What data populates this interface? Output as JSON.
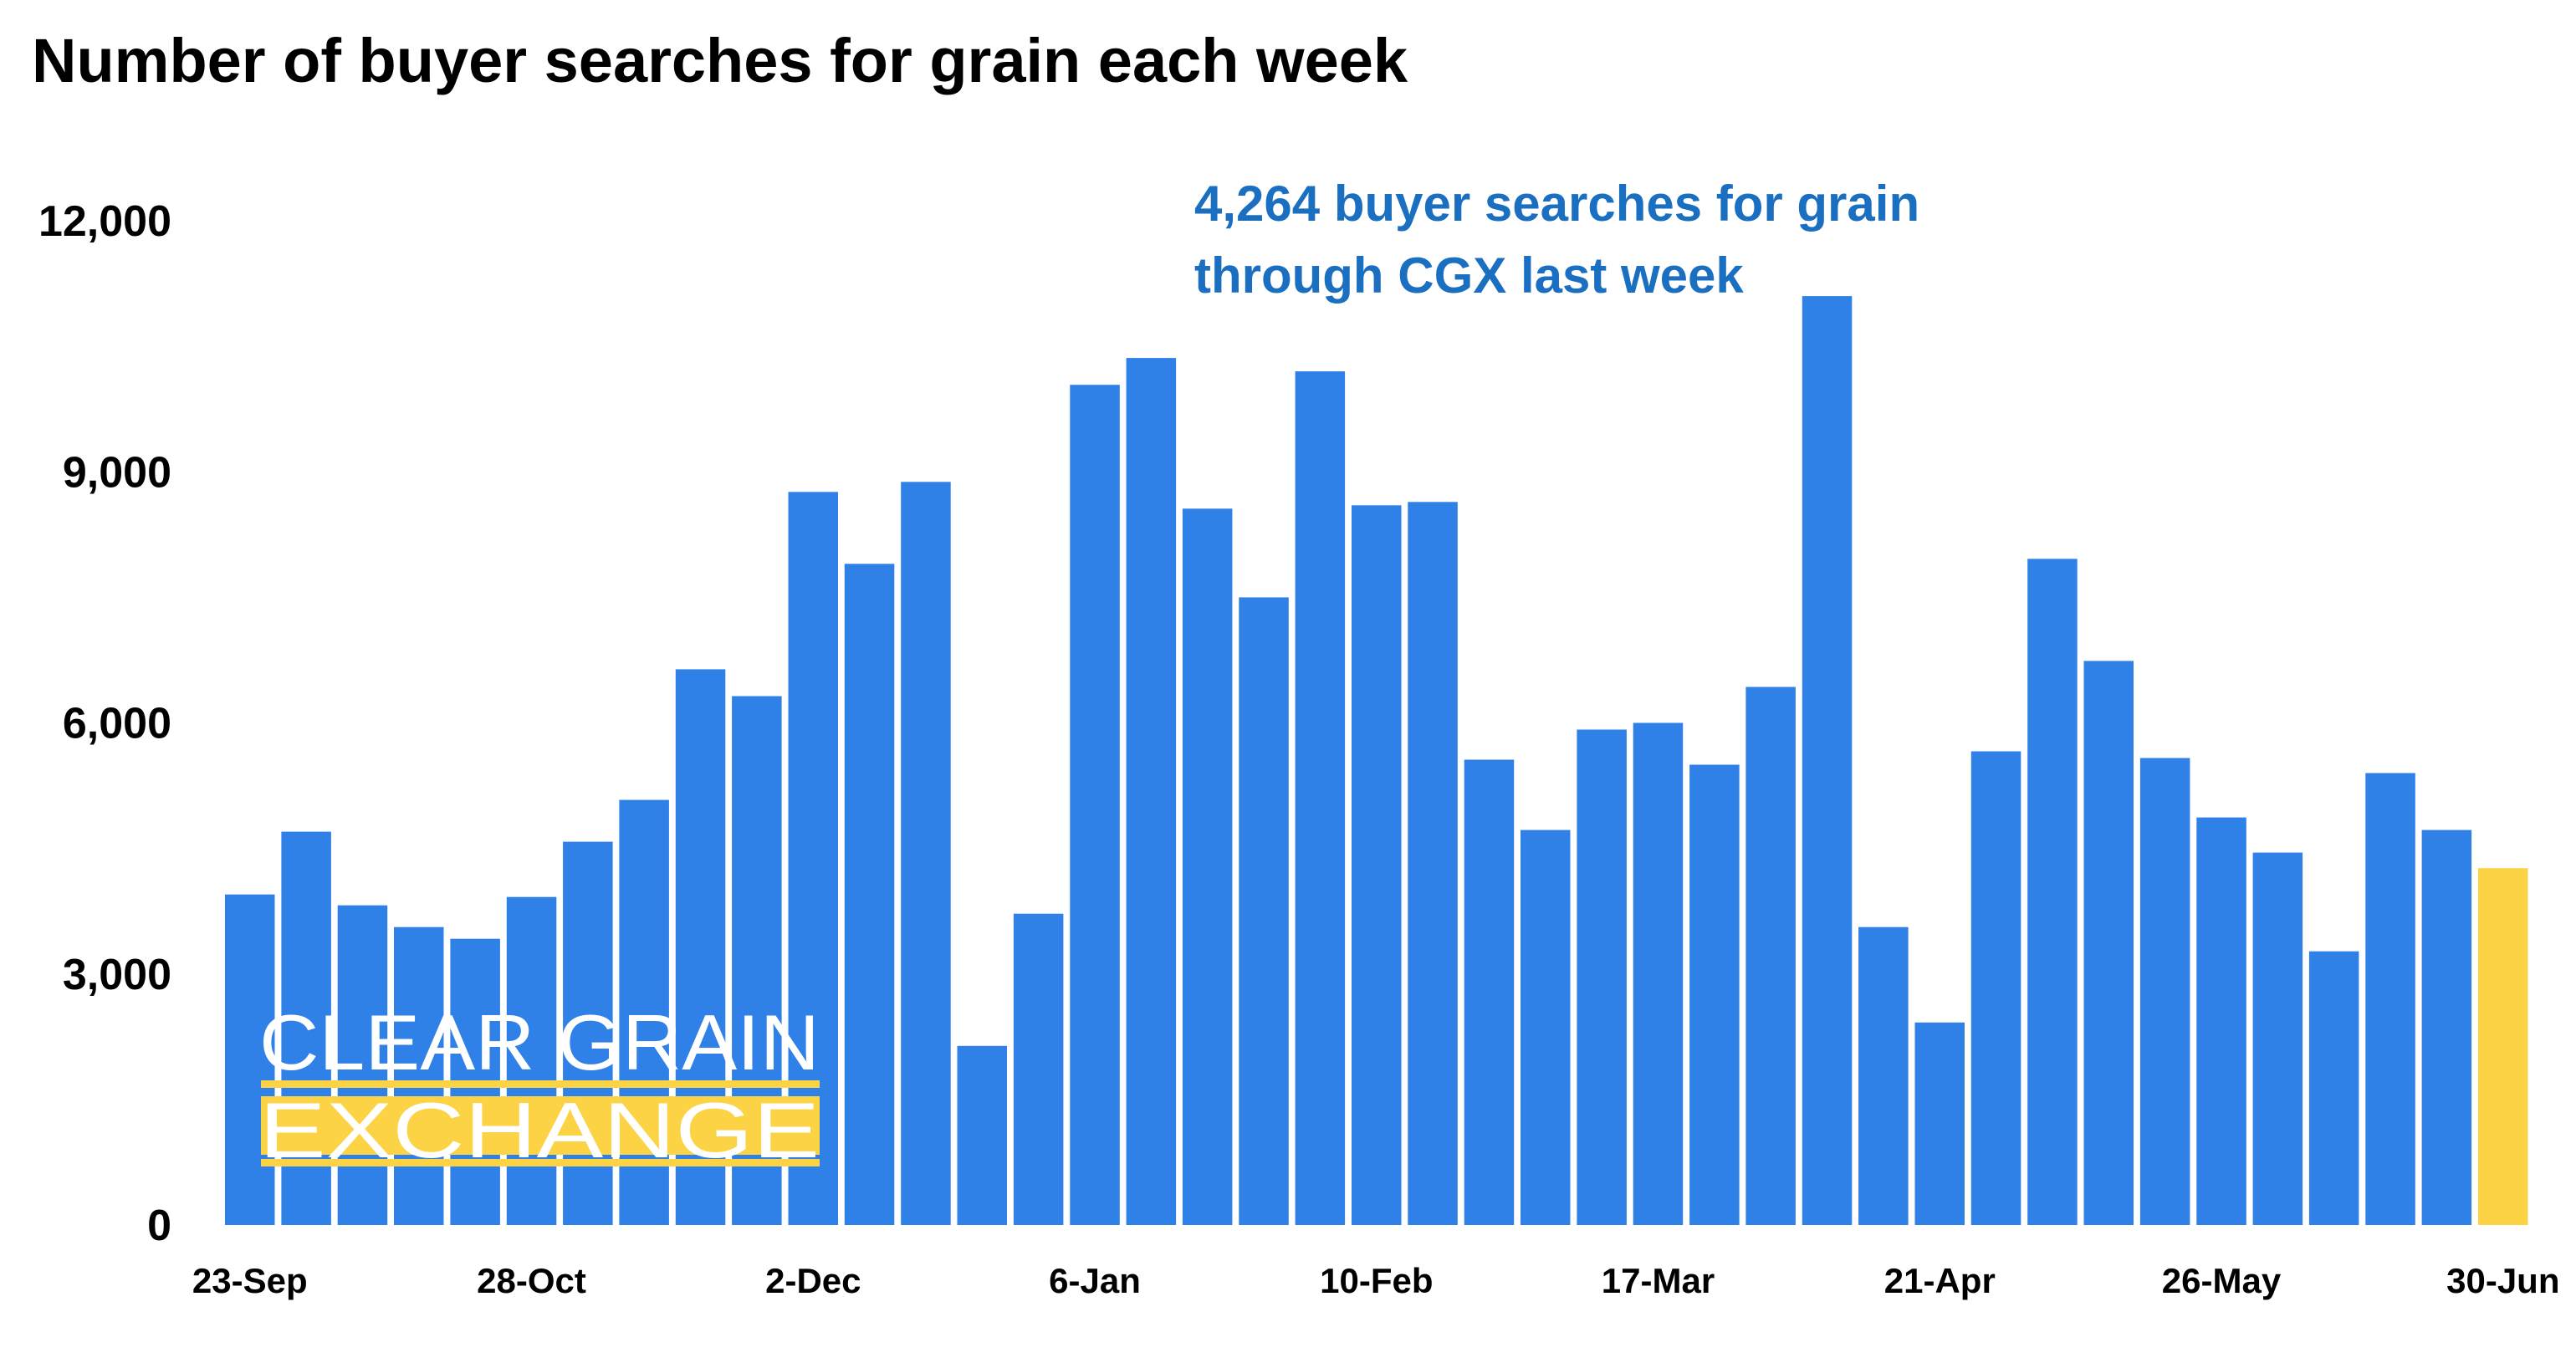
{
  "chart_data": {
    "type": "bar",
    "title": "Number of buyer searches for grain each week",
    "xlabel": "",
    "ylabel": "",
    "ylim": [
      0,
      12000
    ],
    "yticks": [
      0,
      3000,
      6000,
      9000,
      12000
    ],
    "ytick_labels": [
      "0",
      "3,000",
      "6,000",
      "9,000",
      "12,000"
    ],
    "grid": false,
    "legend": "none",
    "xtick_labels": [
      {
        "index": 0,
        "label": "23-Sep"
      },
      {
        "index": 5,
        "label": "28-Oct"
      },
      {
        "index": 10,
        "label": "2-Dec"
      },
      {
        "index": 15,
        "label": "6-Jan"
      },
      {
        "index": 20,
        "label": "10-Feb"
      },
      {
        "index": 25,
        "label": "17-Mar"
      },
      {
        "index": 30,
        "label": "21-Apr"
      },
      {
        "index": 35,
        "label": "26-May"
      },
      {
        "index": 40,
        "label": "30-Jun"
      }
    ],
    "values": [
      3950,
      4700,
      3820,
      3560,
      3420,
      3920,
      4580,
      5080,
      6640,
      6320,
      8760,
      7900,
      8880,
      2140,
      3720,
      10040,
      10360,
      8560,
      7500,
      10200,
      8600,
      8640,
      5560,
      4720,
      5920,
      6000,
      5500,
      6430,
      11100,
      3560,
      2420,
      5660,
      7960,
      6740,
      5580,
      4870,
      4450,
      3270,
      5400,
      4720,
      4264
    ],
    "colors": {
      "bar": "#2f80e7",
      "highlight": "#fcd344"
    },
    "highlight_index": 40,
    "annotation": {
      "lines": [
        "4,264 buyer searches for grain",
        "through CGX last week"
      ],
      "color": "#1b6fc0"
    }
  },
  "logo": {
    "line1": "CLEAR GRAIN",
    "line2": "EXCHANGE",
    "accent": "#fcd344"
  }
}
